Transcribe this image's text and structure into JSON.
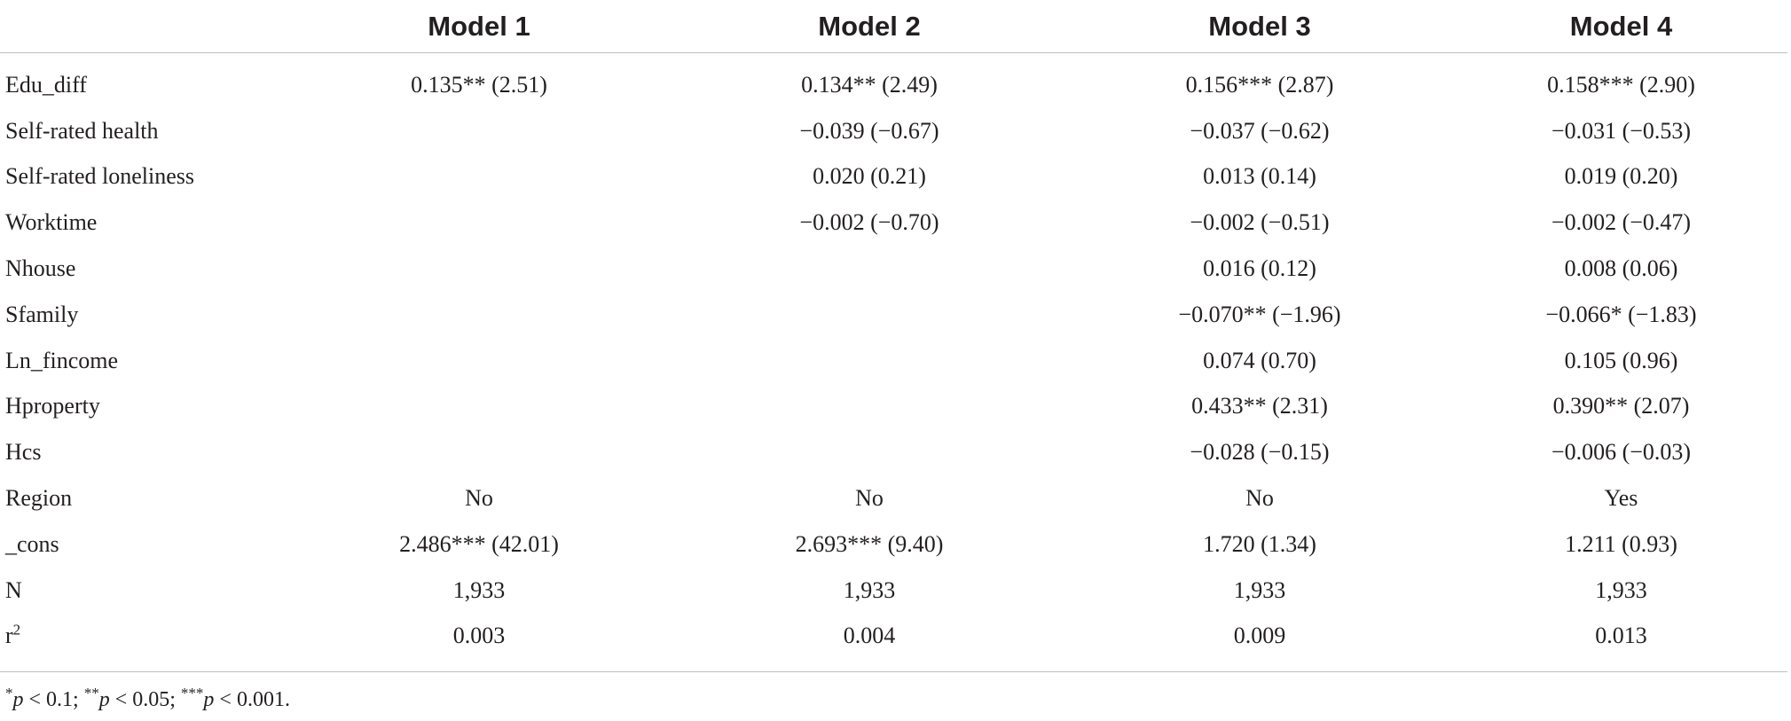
{
  "table": {
    "headers": [
      "",
      "Model 1",
      "Model 2",
      "Model 3",
      "Model 4"
    ],
    "rows": [
      {
        "label": "Edu_diff",
        "values": [
          "0.135** (2.51)",
          "0.134** (2.49)",
          "0.156*** (2.87)",
          "0.158*** (2.90)"
        ]
      },
      {
        "label": "Self-rated health",
        "values": [
          "",
          "−0.039 (−0.67)",
          "−0.037 (−0.62)",
          "−0.031 (−0.53)"
        ]
      },
      {
        "label": "Self-rated loneliness",
        "values": [
          "",
          "0.020 (0.21)",
          "0.013 (0.14)",
          "0.019 (0.20)"
        ]
      },
      {
        "label": "Worktime",
        "values": [
          "",
          "−0.002 (−0.70)",
          "−0.002 (−0.51)",
          "−0.002 (−0.47)"
        ]
      },
      {
        "label": "Nhouse",
        "values": [
          "",
          "",
          "0.016 (0.12)",
          "0.008 (0.06)"
        ]
      },
      {
        "label": "Sfamily",
        "values": [
          "",
          "",
          "−0.070** (−1.96)",
          "−0.066* (−1.83)"
        ]
      },
      {
        "label": "Ln_fincome",
        "values": [
          "",
          "",
          "0.074 (0.70)",
          "0.105 (0.96)"
        ]
      },
      {
        "label": "Hproperty",
        "values": [
          "",
          "",
          "0.433** (2.31)",
          "0.390** (2.07)"
        ]
      },
      {
        "label": "Hcs",
        "values": [
          "",
          "",
          "−0.028 (−0.15)",
          "−0.006 (−0.03)"
        ]
      },
      {
        "label": "Region",
        "values": [
          "No",
          "No",
          "No",
          "Yes"
        ]
      },
      {
        "label": "_cons",
        "values": [
          "2.486*** (42.01)",
          "2.693*** (9.40)",
          "1.720 (1.34)",
          "1.211 (0.93)"
        ]
      },
      {
        "label": "N",
        "values": [
          "1,933",
          "1,933",
          "1,933",
          "1,933"
        ]
      },
      {
        "label": "r",
        "label_superscript": "2",
        "values": [
          "0.003",
          "0.004",
          "0.009",
          "0.013"
        ]
      }
    ]
  },
  "footnote": {
    "parts": [
      {
        "stars": "*",
        "p": "p",
        "rest": " < 0.1; "
      },
      {
        "stars": "**",
        "p": "p",
        "rest": " < 0.05; "
      },
      {
        "stars": "***",
        "p": "p",
        "rest": " < 0.001."
      }
    ]
  }
}
